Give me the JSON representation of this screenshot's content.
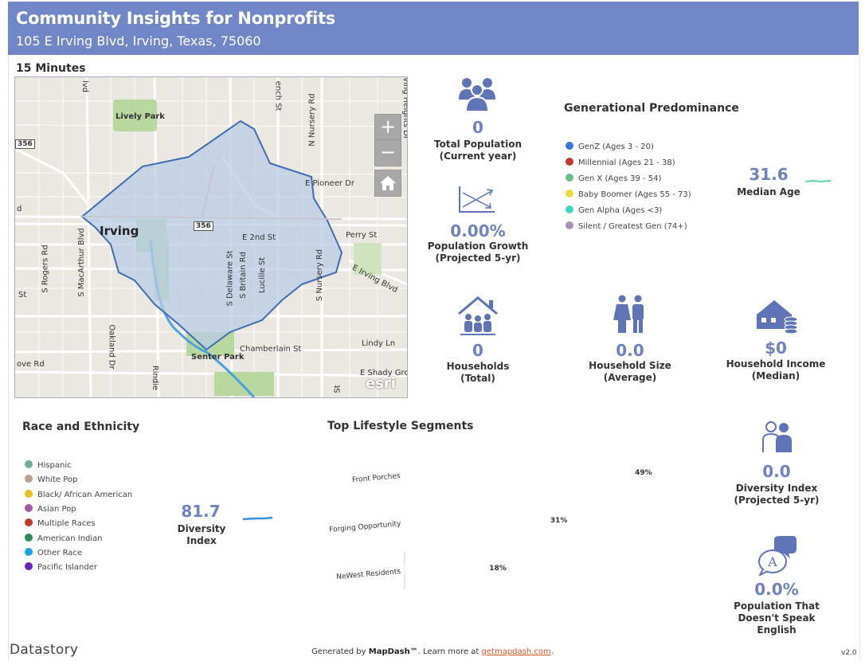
{
  "header": {
    "title": "Community Insights for Nonprofits",
    "address": "105 E Irving Blvd, Irving, Texas, 75060"
  },
  "drive_time": "15 Minutes",
  "map": {
    "labels": {
      "lively_park": "Lively Park",
      "irving": "Irving",
      "e_pioneer": "E Pioneer Dr",
      "n_nursery": "N Nursery Rd",
      "perry": "Perry St",
      "e_2nd": "E 2nd St",
      "e_irving": "E Irving Blvd",
      "s_rogers": "S Rogers Rd",
      "s_macarthur": "S MacArthur Blvd",
      "s_delaware": "S Delaware St",
      "s_britain": "S Britain Rd",
      "lucille": "Lucille St",
      "s_nursery": "S Nursery Rd",
      "chamberlain": "Chamberlain St",
      "lindy": "Lindy Ln",
      "senter": "Senter Park",
      "oakland": "Oakland Dr",
      "rindie": "Rindie",
      "shady": "E Shady Gro",
      "ove_rd": "ove Rd",
      "french": "ench St",
      "irving_heights": "Irving Heights Dr",
      "blvd": "lvd",
      "hwy_356": "356",
      "hwy_356b": "356",
      "st_left": "St",
      "d_left": "d",
      "st_bottom": "St"
    },
    "zoom_in": "+",
    "zoom_out": "−",
    "home": "⌂",
    "attribution": "esri"
  },
  "stats": {
    "total_population": {
      "value": "0",
      "label1": "Total Population",
      "label2": "(Current year)"
    },
    "population_growth": {
      "value": "0.00%",
      "label1": "Population Growth",
      "label2": "(Projected 5-yr)"
    },
    "households": {
      "value": "0",
      "label1": "Households",
      "label2": "(Total)"
    },
    "household_size": {
      "value": "0.0",
      "label1": "Household Size",
      "label2": "(Average)"
    },
    "household_income": {
      "value": "$0",
      "label1": "Household Income",
      "label2": "(Median)"
    },
    "median_age": {
      "value": "31.6",
      "label": "Median Age"
    },
    "diversity_index": {
      "value": "81.7",
      "label1": "Diversity",
      "label2": "Index"
    },
    "diversity_projected": {
      "value": "0.0",
      "label1": "Diversity Index",
      "label2": "(Projected 5-yr)"
    },
    "non_english": {
      "value": "0.0%",
      "label1": "Population That",
      "label2": "Doesn't Speak English"
    }
  },
  "generational": {
    "title": "Generational Predominance",
    "items": [
      {
        "label": "GenZ (Ages 3 - 20)",
        "color": "#3a74d9"
      },
      {
        "label": "Millennial (Ages 21 - 38)",
        "color": "#c0392b"
      },
      {
        "label": "Gen X (Ages 39 - 54)",
        "color": "#6cbf8a"
      },
      {
        "label": "Baby Boomer (Ages 55 - 73)",
        "color": "#e8dc38"
      },
      {
        "label": "Gen Alpha (Ages <3)",
        "color": "#3fd9c0"
      },
      {
        "label": "Silent / Greatest Gen (74+)",
        "color": "#a892b4"
      }
    ]
  },
  "race": {
    "title": "Race and Ethnicity",
    "items": [
      {
        "label": "Hispanic",
        "color": "#6fae9c"
      },
      {
        "label": "White Pop",
        "color": "#b9a08e"
      },
      {
        "label": "Black/ African American",
        "color": "#e3c31b"
      },
      {
        "label": "Asian Pop",
        "color": "#a45aa8"
      },
      {
        "label": "Multiple Races",
        "color": "#c0392b"
      },
      {
        "label": "American Indian",
        "color": "#2e8b57"
      },
      {
        "label": "Other Race",
        "color": "#1ca2e0"
      },
      {
        "label": "Pacific Islander",
        "color": "#6a1fc2"
      }
    ]
  },
  "lifestyle": {
    "title": "Top Lifestyle Segments"
  },
  "chart_data": {
    "type": "bar",
    "categories": [
      "Front Porches",
      "Forging Opportunity",
      "NeWest Residents"
    ],
    "values": [
      49,
      31,
      18
    ],
    "value_labels": [
      "49%",
      "31%",
      "18%"
    ]
  },
  "footer": {
    "brand": "Datastory",
    "gen_prefix": "Generated by",
    "gen_name": "MapDash™",
    "gen_mid": ".  Learn more at",
    "gen_link": "getmapdash.com",
    "gen_end": ".",
    "version": "v2.0"
  },
  "colors": {
    "header_bg": "#7086c6",
    "accent": "#6e82c4",
    "icon": "#5f74b7",
    "sparkline_green": "#5fd3b1",
    "sparkline_blue": "#3a8ee0"
  }
}
